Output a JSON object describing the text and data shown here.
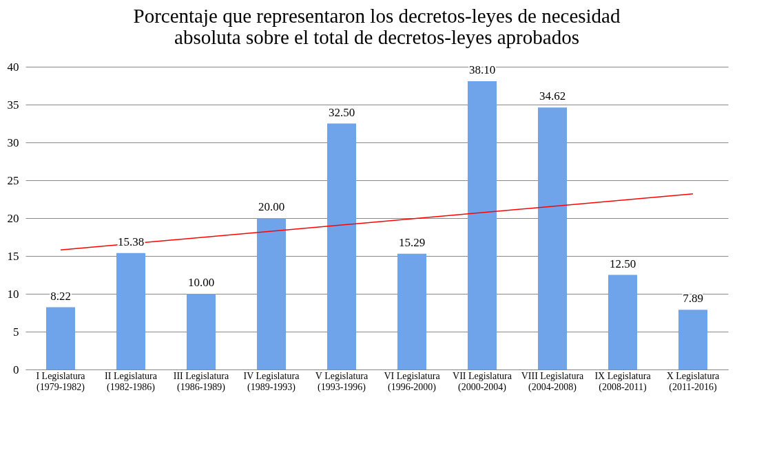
{
  "chart_data": {
    "type": "bar",
    "title": "Porcentaje que representaron los decretos-leyes de necesidad absoluta sobre el total de decretos-leyes aprobados",
    "categories": [
      "I Legislatura (1979-1982)",
      "II Legislatura (1982-1986)",
      "III Legislatura (1986-1989)",
      "IV Legislatura (1989-1993)",
      "V Legislatura (1993-1996)",
      "VI Legislatura (1996-2000)",
      "VII Legislatura (2000-2004)",
      "VIII Legislatura (2004-2008)",
      "IX Legislatura (2008-2011)",
      "X Legislatura (2011-2016)"
    ],
    "series": [
      {
        "color": "#6fa3ea",
        "values": [
          8.22,
          15.38,
          10.0,
          20.0,
          32.5,
          15.29,
          38.1,
          34.62,
          12.5,
          7.89
        ],
        "value_labels": [
          "8.22",
          "15.38",
          "10.00",
          "20.00",
          "32.50",
          "15.29",
          "38.10",
          "34.62",
          "12.50",
          "7.89"
        ]
      },
      {
        "type": "line",
        "color": "#ff0000",
        "x": [
          "I Legislatura (1979-1982)",
          "X Legislatura (2011-2016)"
        ],
        "values": [
          15.8,
          23.2
        ]
      }
    ],
    "ylim": [
      0,
      40
    ],
    "yticks": [
      0,
      5,
      10,
      15,
      20,
      25,
      30,
      35,
      40
    ],
    "grid": "y"
  }
}
